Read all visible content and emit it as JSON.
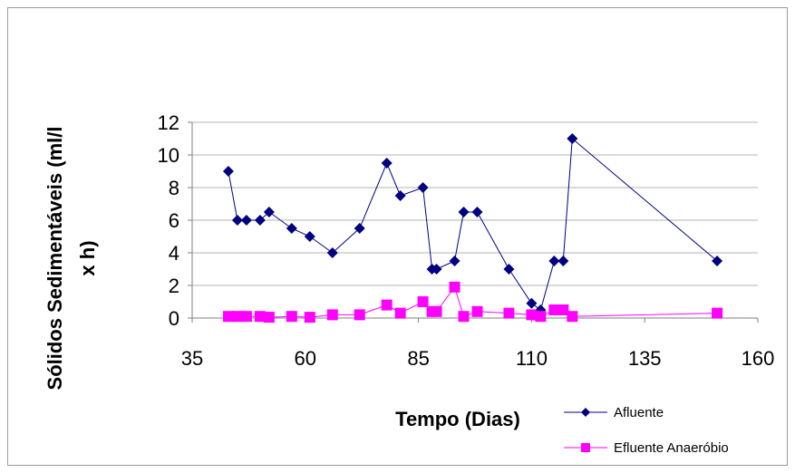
{
  "chart_data": {
    "type": "line",
    "title": "",
    "xlabel": "Tempo (Dias)",
    "ylabel_lines": [
      "Sólidos Sedimentáveis (ml/l",
      "x h)"
    ],
    "xlim": [
      35,
      160
    ],
    "ylim": [
      0,
      12
    ],
    "x_ticks": [
      35,
      60,
      85,
      110,
      135,
      160
    ],
    "y_ticks": [
      0,
      2,
      4,
      6,
      8,
      10,
      12
    ],
    "grid": true,
    "legend_position": "bottom-right",
    "series": [
      {
        "name": "Afluente",
        "color": "#000080",
        "marker": "diamond",
        "x": [
          43,
          45,
          47,
          50,
          52,
          57,
          61,
          66,
          72,
          78,
          81,
          86,
          88,
          89,
          93,
          95,
          98,
          105,
          110,
          112,
          115,
          117,
          119,
          151
        ],
        "y": [
          9,
          6,
          6,
          6,
          6.5,
          5.5,
          5,
          4,
          5.5,
          9.5,
          7.5,
          8,
          3,
          3,
          3.5,
          6.5,
          6.5,
          3,
          0.9,
          0.5,
          3.5,
          3.5,
          11,
          3.5
        ]
      },
      {
        "name": "Efluente Anaeróbio",
        "color": "#FF00FF",
        "marker": "square",
        "x": [
          43,
          45,
          47,
          50,
          52,
          57,
          61,
          66,
          72,
          78,
          81,
          86,
          88,
          89,
          93,
          95,
          98,
          105,
          110,
          112,
          115,
          117,
          119,
          151
        ],
        "y": [
          0.1,
          0.1,
          0.1,
          0.1,
          0.05,
          0.1,
          0.05,
          0.2,
          0.2,
          0.8,
          0.3,
          1.0,
          0.4,
          0.4,
          1.9,
          0.1,
          0.4,
          0.3,
          0.2,
          0.1,
          0.5,
          0.5,
          0.1,
          0.3
        ]
      }
    ]
  }
}
